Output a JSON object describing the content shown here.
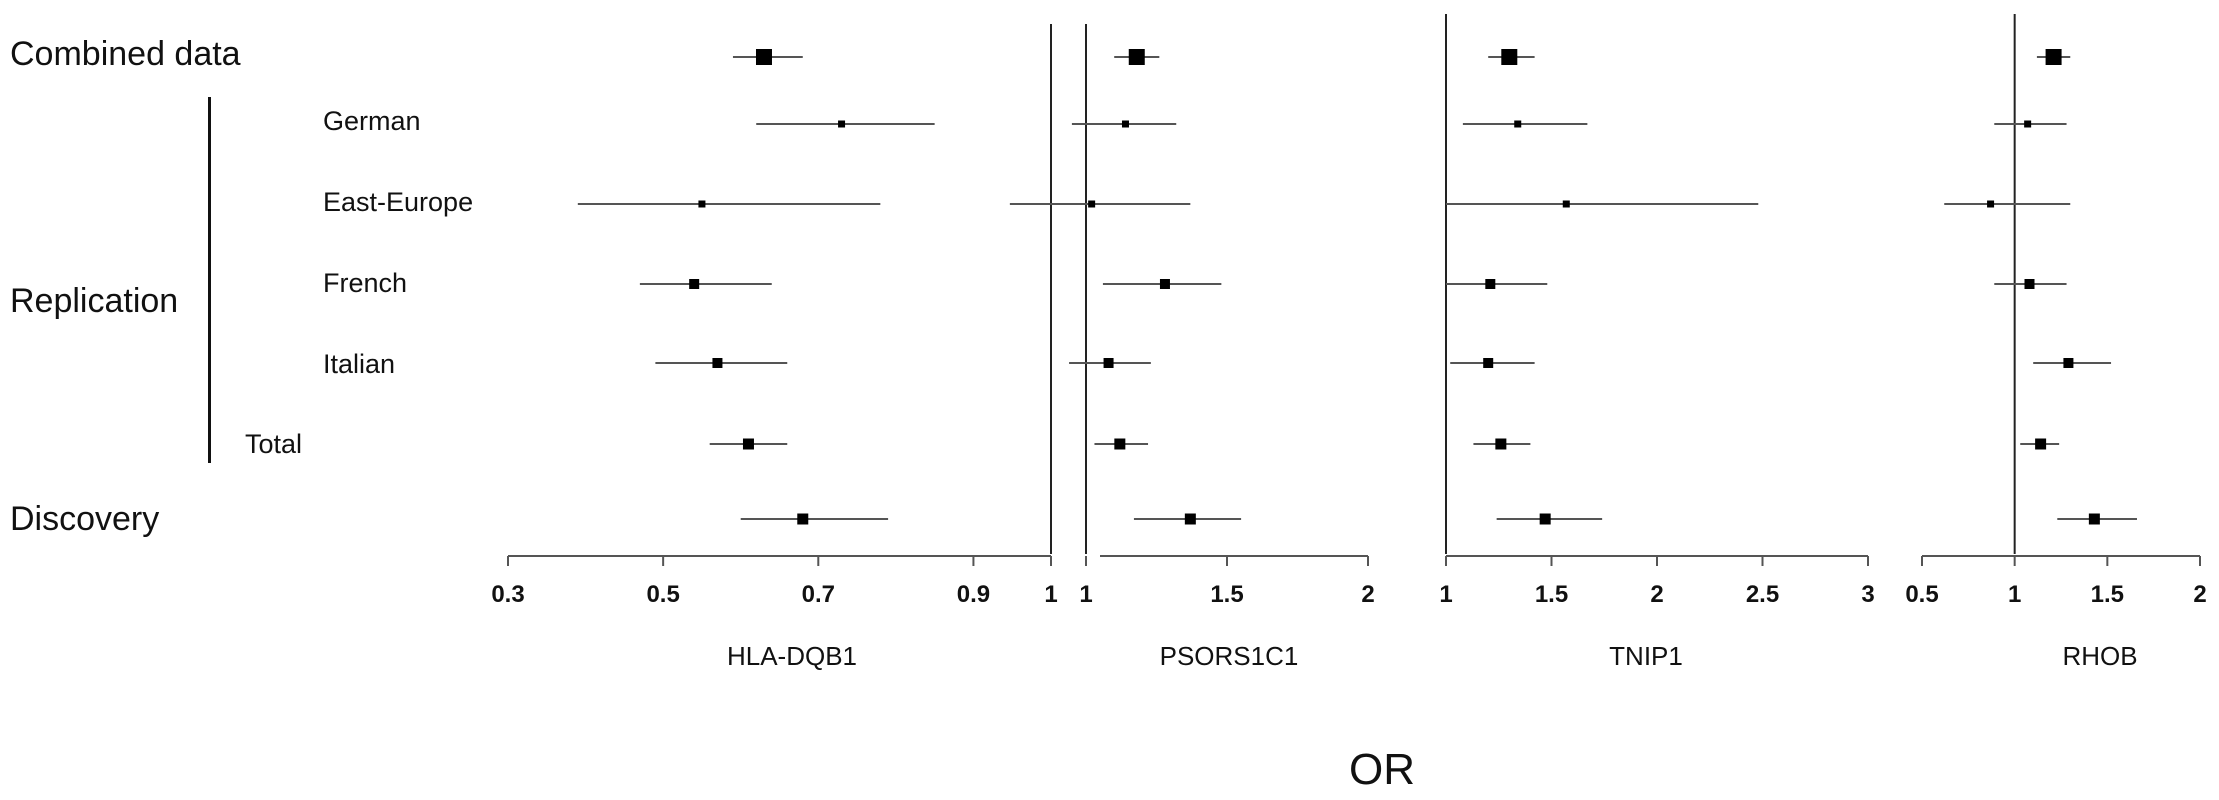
{
  "row_labels": {
    "combined": "Combined data",
    "german": "German",
    "east_europe": "East-Europe",
    "replication": "Replication",
    "french": "French",
    "italian": "Italian",
    "total": "Total",
    "discovery": "Discovery"
  },
  "x_axis_title": "OR",
  "chart_data": [
    {
      "type": "forest",
      "title": "HLA-DQB1",
      "xticks": [
        "0.3",
        "0.5",
        "0.7",
        "0.9",
        "1"
      ],
      "xlim": [
        0.3,
        1.0
      ],
      "reference_line": 1.0,
      "rows": [
        {
          "label": "Combined data",
          "or": 0.63,
          "lo": 0.59,
          "hi": 0.68
        },
        {
          "label": "German",
          "or": 0.73,
          "lo": 0.62,
          "hi": 0.85
        },
        {
          "label": "East-Europe",
          "or": 0.55,
          "lo": 0.39,
          "hi": 0.78
        },
        {
          "label": "French",
          "or": 0.54,
          "lo": 0.47,
          "hi": 0.64
        },
        {
          "label": "Italian",
          "or": 0.57,
          "lo": 0.49,
          "hi": 0.66
        },
        {
          "label": "Total",
          "or": 0.61,
          "lo": 0.56,
          "hi": 0.66
        },
        {
          "label": "Discovery",
          "or": 0.68,
          "lo": 0.6,
          "hi": 0.79
        }
      ]
    },
    {
      "type": "forest",
      "title": "PSORS1C1",
      "xticks": [
        "1",
        "1.5",
        "2"
      ],
      "xlim": [
        0.5,
        2.0
      ],
      "reference_line": 1.0,
      "rows": [
        {
          "label": "Combined data",
          "or": 1.18,
          "lo": 1.1,
          "hi": 1.26
        },
        {
          "label": "German",
          "or": 1.14,
          "lo": 0.95,
          "hi": 1.32
        },
        {
          "label": "East-Europe",
          "or": 1.02,
          "lo": 0.73,
          "hi": 1.37
        },
        {
          "label": "French",
          "or": 1.28,
          "lo": 1.06,
          "hi": 1.48
        },
        {
          "label": "Italian",
          "or": 1.08,
          "lo": 0.94,
          "hi": 1.23
        },
        {
          "label": "Total",
          "or": 1.12,
          "lo": 1.03,
          "hi": 1.22
        },
        {
          "label": "Discovery",
          "or": 1.37,
          "lo": 1.17,
          "hi": 1.55
        }
      ]
    },
    {
      "type": "forest",
      "title": "TNIP1",
      "xticks": [
        "1",
        "1.5",
        "2",
        "2.5",
        "3"
      ],
      "xlim": [
        1.0,
        3.0
      ],
      "reference_line": 1.0,
      "rows": [
        {
          "label": "Combined data",
          "or": 1.3,
          "lo": 1.2,
          "hi": 1.42
        },
        {
          "label": "German",
          "or": 1.34,
          "lo": 1.08,
          "hi": 1.67
        },
        {
          "label": "East-Europe",
          "or": 1.57,
          "lo": 1.0,
          "hi": 2.48
        },
        {
          "label": "French",
          "or": 1.21,
          "lo": 1.0,
          "hi": 1.48
        },
        {
          "label": "Italian",
          "or": 1.2,
          "lo": 1.02,
          "hi": 1.42
        },
        {
          "label": "Total",
          "or": 1.26,
          "lo": 1.13,
          "hi": 1.4
        },
        {
          "label": "Discovery",
          "or": 1.47,
          "lo": 1.24,
          "hi": 1.74
        }
      ]
    },
    {
      "type": "forest",
      "title": "RHOB",
      "xticks": [
        "0.5",
        "1",
        "1.5",
        "2"
      ],
      "xlim": [
        0.5,
        2.0
      ],
      "reference_line": 1.0,
      "rows": [
        {
          "label": "Combined data",
          "or": 1.21,
          "lo": 1.12,
          "hi": 1.3
        },
        {
          "label": "German",
          "or": 1.07,
          "lo": 0.89,
          "hi": 1.28
        },
        {
          "label": "East-Europe",
          "or": 0.87,
          "lo": 0.62,
          "hi": 1.3
        },
        {
          "label": "French",
          "or": 1.08,
          "lo": 0.89,
          "hi": 1.28
        },
        {
          "label": "Italian",
          "or": 1.29,
          "lo": 1.1,
          "hi": 1.52
        },
        {
          "label": "Total",
          "or": 1.14,
          "lo": 1.03,
          "hi": 1.24
        },
        {
          "label": "Discovery",
          "or": 1.43,
          "lo": 1.23,
          "hi": 1.66
        }
      ]
    }
  ]
}
